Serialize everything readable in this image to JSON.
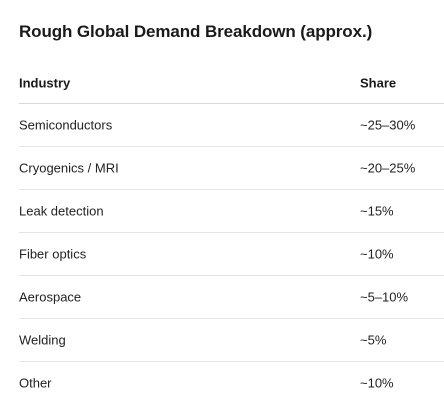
{
  "title": "Rough Global Demand Breakdown (approx.)",
  "table": {
    "columns": [
      "Industry",
      "Share"
    ],
    "rows": [
      {
        "industry": "Semiconductors",
        "share": "~25–30%"
      },
      {
        "industry": "Cryogenics / MRI",
        "share": "~20–25%"
      },
      {
        "industry": "Leak detection",
        "share": "~15%"
      },
      {
        "industry": "Fiber optics",
        "share": "~10%"
      },
      {
        "industry": "Aerospace",
        "share": "~5–10%"
      },
      {
        "industry": "Welding",
        "share": "~5%"
      },
      {
        "industry": "Other",
        "share": "~10%"
      }
    ]
  }
}
